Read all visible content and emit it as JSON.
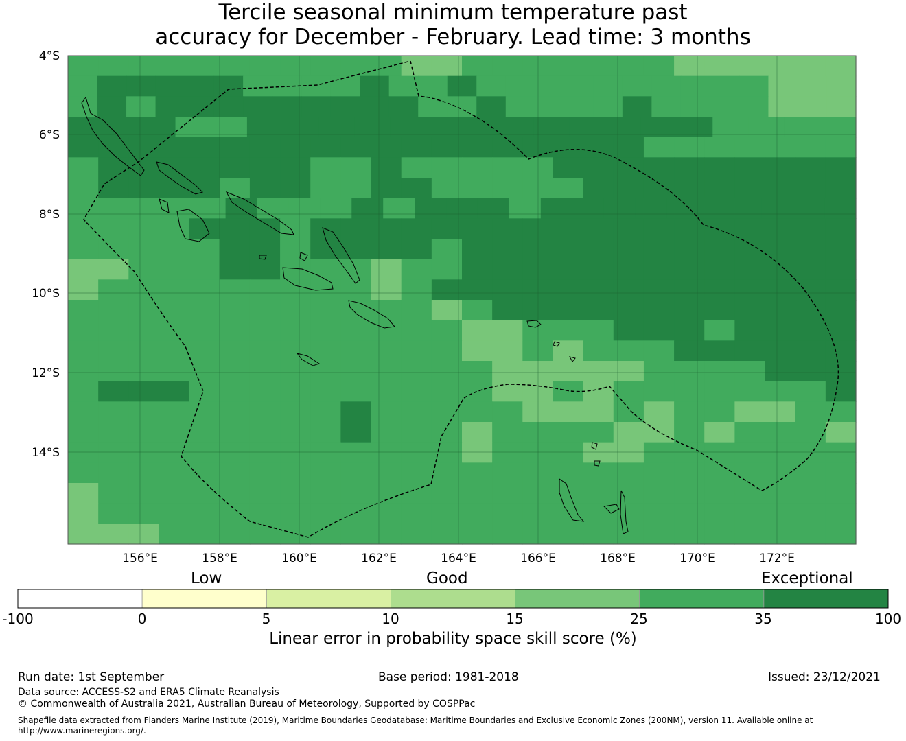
{
  "title": {
    "line1": "Tercile seasonal minimum temperature past",
    "line2": "accuracy for December - February. Lead time: 3 months"
  },
  "map": {
    "lat_labels": [
      "4°S",
      "6°S",
      "8°S",
      "10°S",
      "12°S",
      "14°S"
    ],
    "lon_labels": [
      "156°E",
      "158°E",
      "160°E",
      "162°E",
      "164°E",
      "166°E",
      "168°E",
      "170°E",
      "172°E"
    ],
    "skill_grid_legend_classes": [
      "15-25",
      "25-35",
      "35-100"
    ],
    "skill_grid": [
      "22222222222112222222111111",
      "233333222232232222222222111",
      "232333333333223222232222111",
      "3332233333333333332222",
      "33333333333333333332222222",
      "23333333223222223333333333",
      "23333233223322222333333333",
      "2222232223233323333333333",
      "22223332333333333333333333",
      "22222332333323333333333333",
      "11222332221223333333333333",
      "12222222221233333333333333",
      "22222222222212333333333333",
      "22222222222221122233323333",
      "22222222222221121222333333",
      "22222222222222111112222333",
      "23332222222222112122222223",
      "22222222232222211121221122",
      "22222222232221222211212221",
      "22222222222221222112222222",
      "22222222222222222222222222",
      "12222222222222222222222222",
      "12222222222222222222222222",
      "11122222222222222222222222"
    ]
  },
  "colorbar": {
    "category_labels": [
      "Low",
      "Good",
      "Exceptional"
    ],
    "ticks": [
      "-100",
      "0",
      "5",
      "10",
      "15",
      "25",
      "35",
      "100"
    ],
    "colors": [
      "#ffffff",
      "#ffffcc",
      "#d9f0a3",
      "#addd8e",
      "#78c679",
      "#41ab5d",
      "#238443"
    ],
    "axis_label": "Linear error in probability space skill score (%)"
  },
  "footer": {
    "run_date": "Run date: 1st September",
    "base_period": "Base period: 1981-2018",
    "issued": "Issued: 23/12/2021",
    "data_source": "Data source: ACCESS-S2 and ERA5 Climate Reanalysis",
    "copyright": "© Commonwealth of Australia 2021, Australian Bureau of Meteorology, Supported by COSPPac",
    "shapefile": "Shapefile data extracted from Flanders Marine Institute (2019), Maritime Boundaries Geodatabase: Maritime Boundaries and Exclusive Economic Zones (200NM), version 11. Available online at http://www.marineregions.org/."
  }
}
